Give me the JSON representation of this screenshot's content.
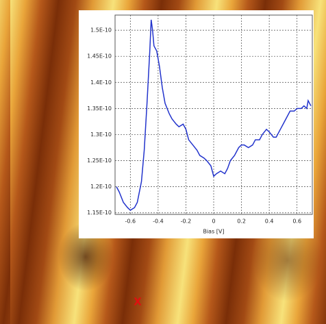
{
  "chart_data": {
    "type": "line",
    "x_label": "Bias [V]",
    "x": [
      -0.7,
      -0.68,
      -0.65,
      -0.62,
      -0.6,
      -0.57,
      -0.55,
      -0.52,
      -0.5,
      -0.48,
      -0.46,
      -0.45,
      -0.44,
      -0.43,
      -0.41,
      -0.39,
      -0.37,
      -0.35,
      -0.32,
      -0.3,
      -0.27,
      -0.25,
      -0.22,
      -0.2,
      -0.18,
      -0.15,
      -0.12,
      -0.1,
      -0.07,
      -0.05,
      -0.02,
      0,
      0.02,
      0.05,
      0.08,
      0.1,
      0.12,
      0.15,
      0.18,
      0.2,
      0.22,
      0.25,
      0.28,
      0.3,
      0.33,
      0.35,
      0.38,
      0.4,
      0.43,
      0.45,
      0.48,
      0.5,
      0.52,
      0.55,
      0.58,
      0.6,
      0.63,
      0.65,
      0.67,
      0.68,
      0.7
    ],
    "values": [
      1.2e-10,
      1.19e-10,
      1.17e-10,
      1.16e-10,
      1.155e-10,
      1.16e-10,
      1.17e-10,
      1.21e-10,
      1.27e-10,
      1.36e-10,
      1.46e-10,
      1.52e-10,
      1.5e-10,
      1.47e-10,
      1.46e-10,
      1.43e-10,
      1.39e-10,
      1.36e-10,
      1.34e-10,
      1.33e-10,
      1.32e-10,
      1.315e-10,
      1.32e-10,
      1.31e-10,
      1.29e-10,
      1.28e-10,
      1.27e-10,
      1.26e-10,
      1.255e-10,
      1.25e-10,
      1.24e-10,
      1.22e-10,
      1.225e-10,
      1.23e-10,
      1.225e-10,
      1.235e-10,
      1.25e-10,
      1.26e-10,
      1.275e-10,
      1.28e-10,
      1.28e-10,
      1.275e-10,
      1.28e-10,
      1.29e-10,
      1.29e-10,
      1.3e-10,
      1.31e-10,
      1.305e-10,
      1.295e-10,
      1.295e-10,
      1.31e-10,
      1.32e-10,
      1.33e-10,
      1.345e-10,
      1.345e-10,
      1.35e-10,
      1.35e-10,
      1.355e-10,
      1.35e-10,
      1.365e-10,
      1.355e-10
    ],
    "color": "#2233cc",
    "xlim": [
      -0.71,
      0.71
    ],
    "xticks": [
      -0.6,
      -0.4,
      -0.2,
      0,
      0.2,
      0.4,
      0.6
    ],
    "ylim": [
      1.147e-10,
      1.529e-10
    ],
    "yticks": [
      {
        "value": 1.15e-10,
        "label": "1.15E-10"
      },
      {
        "value": 1.2e-10,
        "label": "1.2E-10"
      },
      {
        "value": 1.25e-10,
        "label": "1.25E-10"
      },
      {
        "value": 1.3e-10,
        "label": "1.3E-10"
      },
      {
        "value": 1.35e-10,
        "label": "1.35E-10"
      },
      {
        "value": 1.4e-10,
        "label": "1.4E-10"
      },
      {
        "value": 1.45e-10,
        "label": "1.45E-10"
      },
      {
        "value": 1.5e-10,
        "label": "1.5E-10"
      }
    ],
    "grid": true
  },
  "marker": {
    "label": "X"
  }
}
